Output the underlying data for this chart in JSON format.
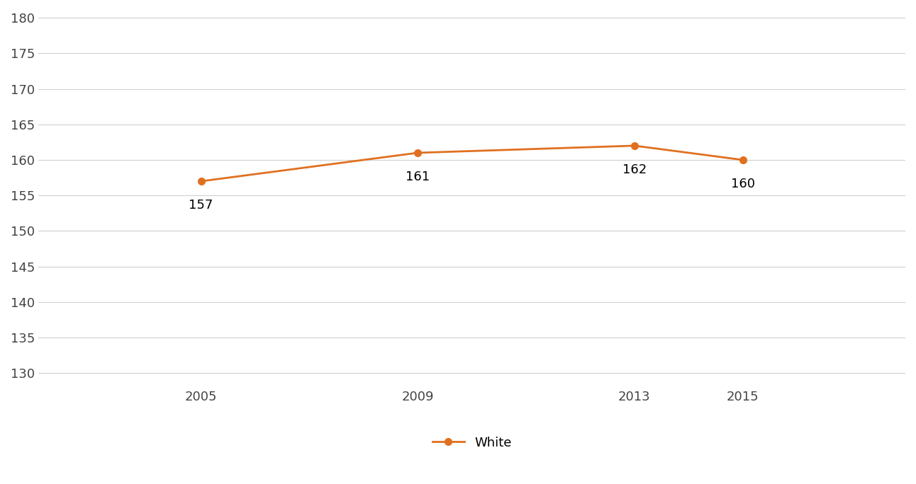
{
  "years": [
    2005,
    2009,
    2013,
    2015
  ],
  "values": [
    157,
    161,
    162,
    160
  ],
  "line_color": "#E07020",
  "marker_color": "#E07020",
  "marker_style": "o",
  "marker_size": 7,
  "line_width": 2.0,
  "ylim": [
    128,
    181
  ],
  "yticks": [
    130,
    135,
    140,
    145,
    150,
    155,
    160,
    165,
    170,
    175,
    180
  ],
  "xticks": [
    2005,
    2009,
    2013,
    2015
  ],
  "xlim": [
    2002,
    2018
  ],
  "legend_label": "White",
  "background_color": "#ffffff",
  "grid_color": "#d0d0d0",
  "label_fontsize": 13,
  "tick_fontsize": 13,
  "legend_fontsize": 13
}
